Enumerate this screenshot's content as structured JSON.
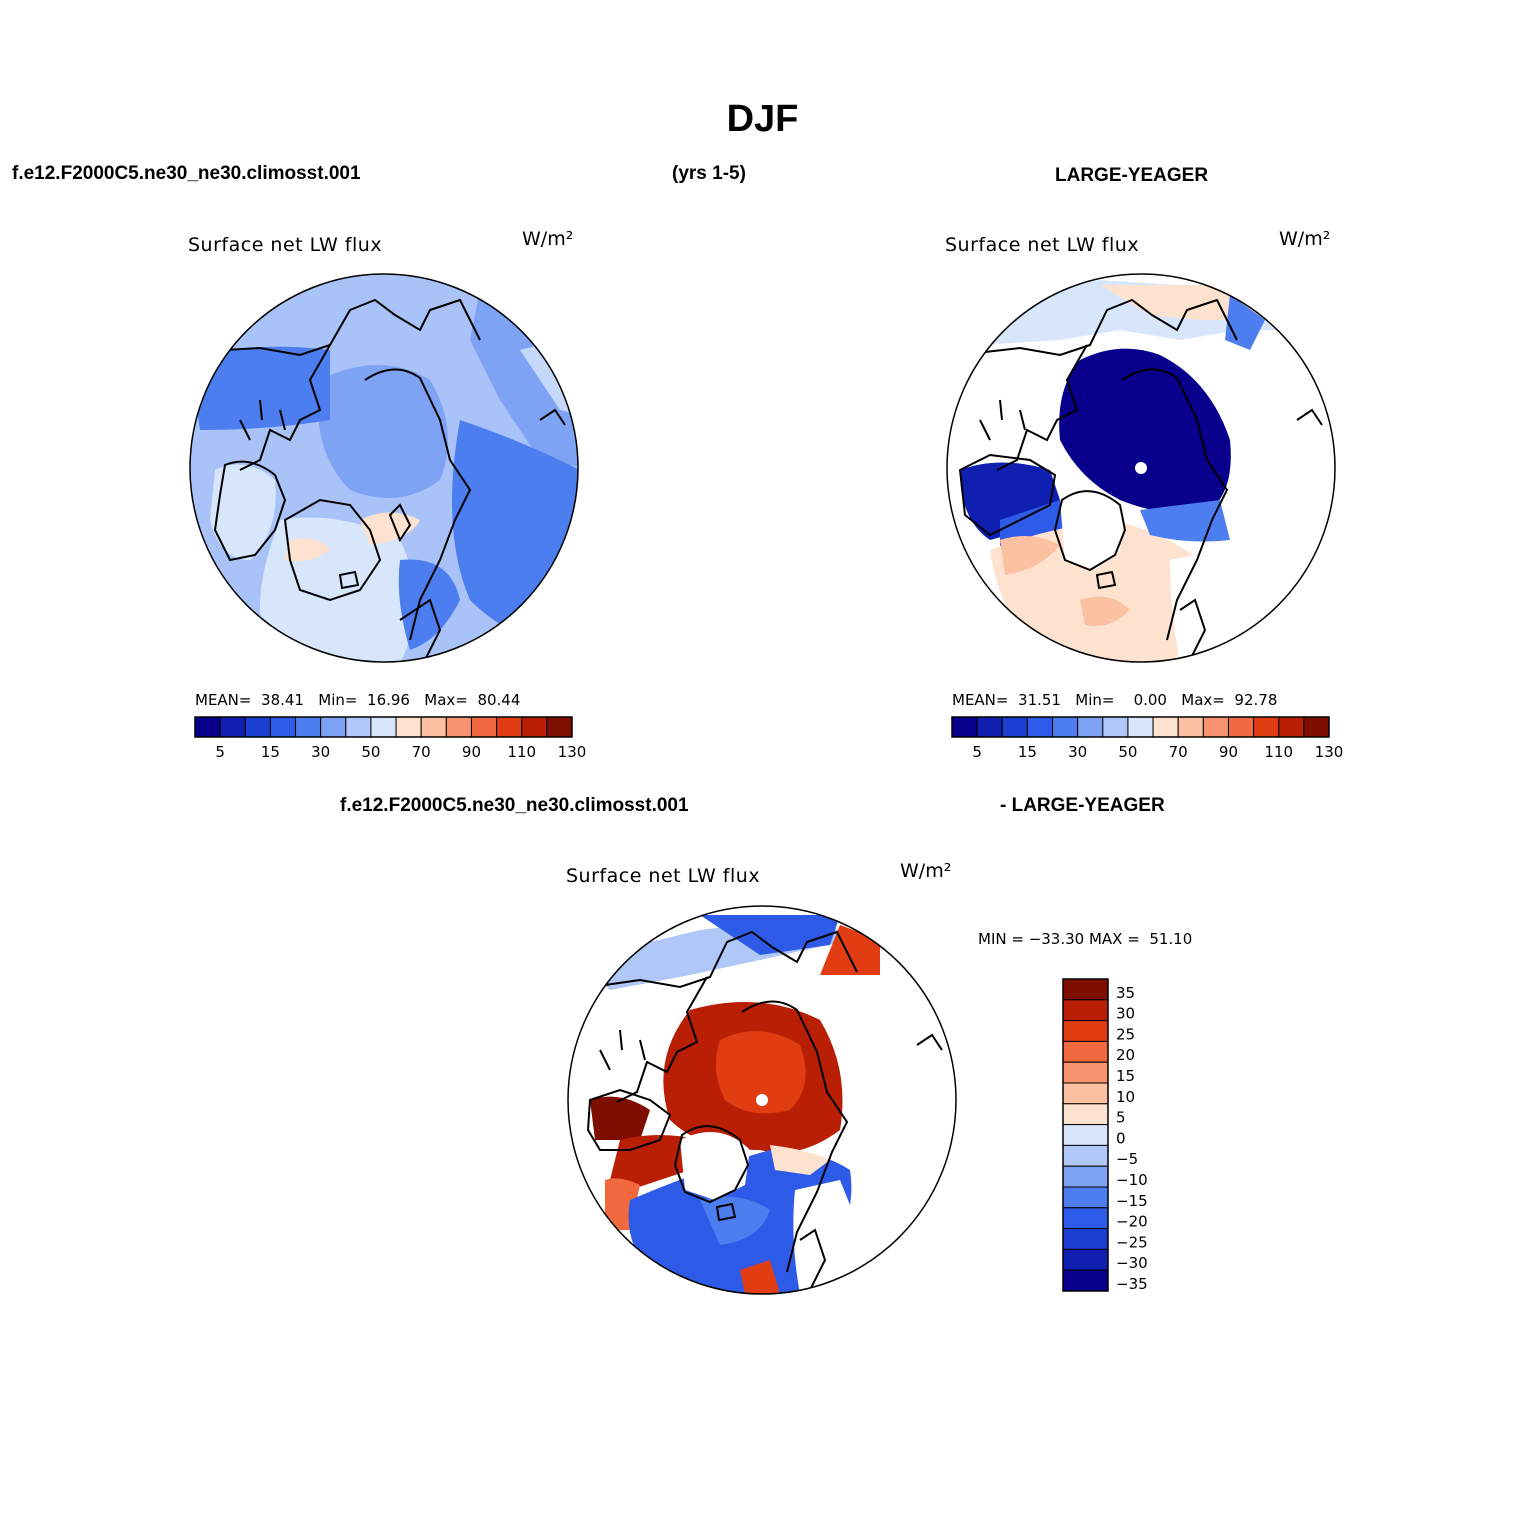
{
  "page": {
    "title": "DJF",
    "header_left": "f.e12.F2000C5.ne30_ne30.climosst.001",
    "header_center": "(yrs 1-5)",
    "header_right": "LARGE-YEAGER",
    "diff_header_left": "f.e12.F2000C5.ne30_ne30.climosst.001",
    "diff_header_right": "- LARGE-YEAGER"
  },
  "panels": {
    "p1": {
      "title": "Surface net LW flux",
      "units": "W/m²",
      "mean_label": "MEAN=",
      "mean": "38.41",
      "min_label": "Min=",
      "min": "16.96",
      "max_label": "Max=",
      "max": "80.44"
    },
    "p2": {
      "title": "Surface net LW flux",
      "units": "W/m²",
      "mean_label": "MEAN=",
      "mean": "31.51",
      "min_label": "Min=",
      "min": "0.00",
      "max_label": "Max=",
      "max": "92.78"
    },
    "p3": {
      "title": "Surface net LW flux",
      "units": "W/m²",
      "minmax": "MIN = −33.30 MAX =  51.10"
    }
  },
  "colors": {
    "abs_scale": [
      "#08008c",
      "#0f1fb0",
      "#1a3fd0",
      "#2d5be8",
      "#4d7ef0",
      "#7ea3f4",
      "#b0c8f8",
      "#d8e6fc",
      "#fde3cf",
      "#fcc0a2",
      "#f89470",
      "#f1693f",
      "#e03d13",
      "#b81f05",
      "#7e0f00"
    ],
    "diff_scale": [
      "#08008c",
      "#0f1fb0",
      "#1a3fd0",
      "#2d5be8",
      "#4d7ef0",
      "#7ea3f4",
      "#b0c8f8",
      "#d8e6fc",
      "#fde3cf",
      "#fcc0a2",
      "#f89470",
      "#f1693f",
      "#e03d13",
      "#b81f05",
      "#7e0f00"
    ]
  },
  "chart_data": [
    {
      "type": "heatmap",
      "projection": "polar stereographic (north)",
      "title": "Surface net LW flux",
      "units": "W/m²",
      "case": "f.e12.F2000C5.ne30_ne30.climosst.001",
      "period": "(yrs 1-5)",
      "mean": 38.41,
      "min": 16.96,
      "max": 80.44,
      "colorbar_levels": [
        5,
        10,
        15,
        20,
        30,
        40,
        50,
        60,
        70,
        80,
        90,
        100,
        110,
        120,
        130
      ],
      "colorbar_tick_labels": [
        "5",
        "15",
        "30",
        "50",
        "70",
        "90",
        "110",
        "130"
      ]
    },
    {
      "type": "heatmap",
      "projection": "polar stereographic (north)",
      "title": "Surface net LW flux",
      "units": "W/m²",
      "case": "LARGE-YEAGER",
      "mean": 31.51,
      "min": 0.0,
      "max": 92.78,
      "colorbar_levels": [
        5,
        10,
        15,
        20,
        30,
        40,
        50,
        60,
        70,
        80,
        90,
        100,
        110,
        120,
        130
      ],
      "colorbar_tick_labels": [
        "5",
        "15",
        "30",
        "50",
        "70",
        "90",
        "110",
        "130"
      ]
    },
    {
      "type": "heatmap",
      "projection": "polar stereographic (north)",
      "title": "Surface net LW flux",
      "units": "W/m²",
      "case": "f.e12.F2000C5.ne30_ne30.climosst.001 - LARGE-YEAGER",
      "min": -33.3,
      "max": 51.1,
      "colorbar_levels": [
        -35,
        -30,
        -25,
        -20,
        -15,
        -10,
        -5,
        0,
        5,
        10,
        15,
        20,
        25,
        30,
        35
      ],
      "colorbar_tick_labels": [
        "35",
        "30",
        "25",
        "20",
        "15",
        "10",
        "5",
        "0",
        "−5",
        "−10",
        "−15",
        "−20",
        "−25",
        "−30",
        "−35"
      ]
    }
  ]
}
